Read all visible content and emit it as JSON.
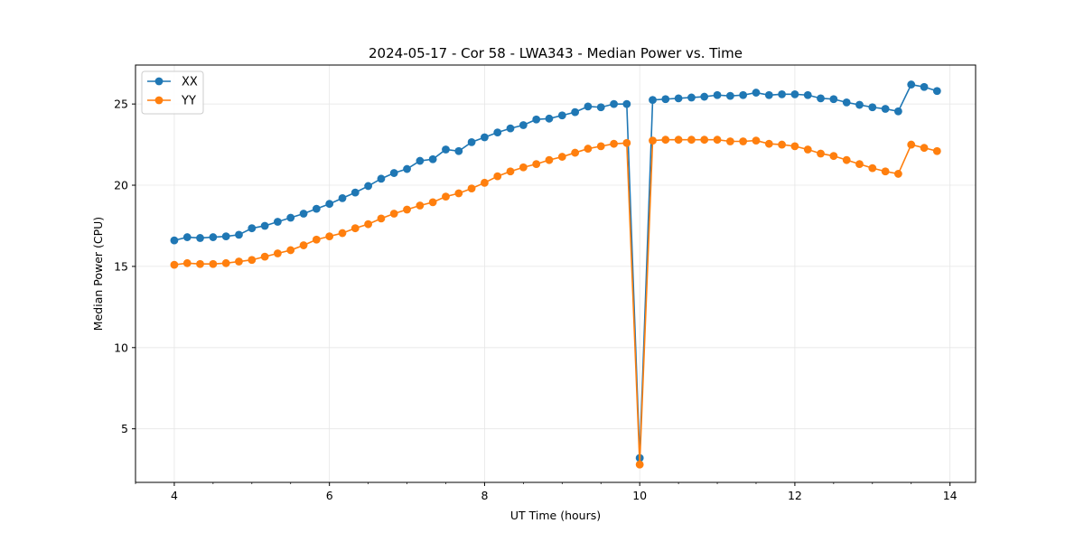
{
  "chart_data": {
    "type": "line",
    "title": "2024-05-17 - Cor 58 - LWA343 - Median Power vs. Time",
    "xlabel": "UT Time (hours)",
    "ylabel": "Median Power (CPU)",
    "xlim": [
      3.5,
      14.33
    ],
    "ylim": [
      1.7,
      27.4
    ],
    "xticks": [
      4,
      6,
      8,
      10,
      12,
      14
    ],
    "yticks": [
      5,
      10,
      15,
      20,
      25
    ],
    "grid": true,
    "legend_position": "top-left",
    "x": [
      4.0,
      4.167,
      4.333,
      4.5,
      4.667,
      4.833,
      5.0,
      5.167,
      5.333,
      5.5,
      5.667,
      5.833,
      6.0,
      6.167,
      6.333,
      6.5,
      6.667,
      6.833,
      7.0,
      7.167,
      7.333,
      7.5,
      7.667,
      7.833,
      8.0,
      8.167,
      8.333,
      8.5,
      8.667,
      8.833,
      9.0,
      9.167,
      9.333,
      9.5,
      9.667,
      9.833,
      10.0,
      10.167,
      10.333,
      10.5,
      10.667,
      10.833,
      11.0,
      11.167,
      11.333,
      11.5,
      11.667,
      11.833,
      12.0,
      12.167,
      12.333,
      12.5,
      12.667,
      12.833,
      13.0,
      13.167,
      13.333,
      13.5,
      13.667,
      13.833
    ],
    "series": [
      {
        "name": "XX",
        "color": "#1f77b4",
        "values": [
          16.6,
          16.8,
          16.75,
          16.8,
          16.85,
          16.95,
          17.35,
          17.5,
          17.75,
          18.0,
          18.25,
          18.55,
          18.85,
          19.2,
          19.55,
          19.95,
          20.4,
          20.75,
          21.0,
          21.5,
          21.6,
          22.2,
          22.1,
          22.65,
          22.95,
          23.25,
          23.5,
          23.7,
          24.05,
          24.1,
          24.3,
          24.5,
          24.85,
          24.8,
          25.0,
          25.0,
          3.2,
          25.25,
          25.3,
          25.35,
          25.4,
          25.45,
          25.55,
          25.5,
          25.55,
          25.7,
          25.55,
          25.6,
          25.6,
          25.55,
          25.35,
          25.3,
          25.1,
          24.95,
          24.8,
          24.7,
          24.55,
          26.2,
          26.05,
          25.8
        ]
      },
      {
        "name": "YY",
        "color": "#ff7f0e",
        "values": [
          15.1,
          15.2,
          15.15,
          15.15,
          15.2,
          15.3,
          15.4,
          15.6,
          15.8,
          16.0,
          16.3,
          16.65,
          16.85,
          17.05,
          17.35,
          17.6,
          17.95,
          18.25,
          18.5,
          18.75,
          18.95,
          19.3,
          19.5,
          19.8,
          20.15,
          20.55,
          20.85,
          21.1,
          21.3,
          21.55,
          21.75,
          22.0,
          22.25,
          22.4,
          22.55,
          22.6,
          2.8,
          22.75,
          22.8,
          22.8,
          22.8,
          22.8,
          22.8,
          22.7,
          22.7,
          22.75,
          22.55,
          22.5,
          22.4,
          22.2,
          21.95,
          21.8,
          21.55,
          21.3,
          21.05,
          20.85,
          20.7,
          22.5,
          22.3,
          22.1
        ]
      }
    ]
  }
}
